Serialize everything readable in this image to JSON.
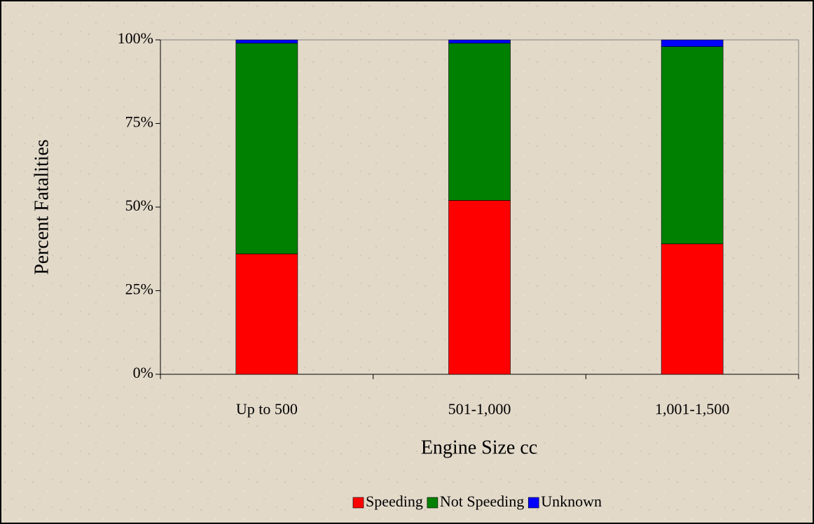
{
  "chart_data": {
    "type": "stacked_bar",
    "x_label": "Engine Size cc",
    "y_label": "Percent Fatalities",
    "categories": [
      "Up to 500",
      "501-1,000",
      "1,001-1,500"
    ],
    "series": [
      {
        "name": "Speeding",
        "color": "#ff0000",
        "values": [
          36,
          52,
          39
        ]
      },
      {
        "name": "Not Speeding",
        "color": "#008000",
        "values": [
          63,
          47,
          59
        ]
      },
      {
        "name": "Unknown",
        "color": "#0000ff",
        "values": [
          1,
          1,
          2
        ]
      }
    ],
    "ylim": [
      0,
      100
    ],
    "yticks": [
      {
        "value": 0,
        "label": "0%"
      },
      {
        "value": 25,
        "label": "25%"
      },
      {
        "value": 50,
        "label": "50%"
      },
      {
        "value": 75,
        "label": "75%"
      },
      {
        "value": 100,
        "label": "100%"
      }
    ],
    "legend": "bottom"
  }
}
